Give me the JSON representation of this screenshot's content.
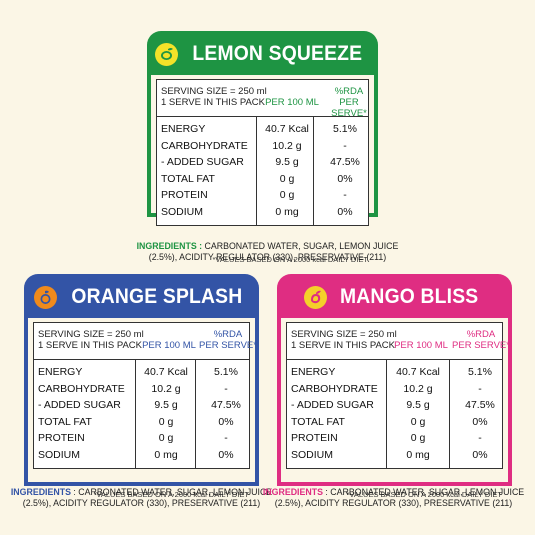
{
  "table": {
    "serving": "SERVING SIZE = 250 ml",
    "pack": "1 SERVE IN THIS PACK",
    "per100": "PER 100 ML",
    "rda_top": "%RDA",
    "rda_bottom": "PER SERVE*",
    "rows": [
      {
        "label": "ENERGY",
        "per100": "40.7 Kcal",
        "rda": "5.1%"
      },
      {
        "label": "CARBOHYDRATE",
        "per100": "10.2 g",
        "rda": "-"
      },
      {
        "label": "- ADDED SUGAR",
        "per100": "9.5 g",
        "rda": "47.5%"
      },
      {
        "label": "TOTAL FAT",
        "per100": "0 g",
        "rda": "0%"
      },
      {
        "label": "PROTEIN",
        "per100": "0 g",
        "rda": "-"
      },
      {
        "label": "SODIUM",
        "per100": "0 mg",
        "rda": "0%"
      }
    ]
  },
  "cards": {
    "lemon": {
      "title": "LEMON SQUEEZE",
      "note": "*VALUES BASED ON A 2000 kcal DAILY DIET",
      "ingredients_label": "INGREDIENTS :",
      "ingredients_line1": " CARBONATED WATER, SUGAR, LEMON JUICE",
      "ingredients_line2": "(2.5%), ACIDITY REGULATOR (330), PRESERVATIVE (211)",
      "color": "#1e9443",
      "accent": "#1e9443"
    },
    "orange": {
      "title": "ORANGE SPLASH",
      "note": "*VALUES BASED ON A 2000 kcal DAILY DIET",
      "ingredients_label": "INGREDIENTS",
      "ingredients_line1": " : CARBONATED WATER, SUGAR, LEMON JUICE",
      "ingredients_line2": "(2.5%), ACIDITY REGULATOR (330), PRESERVATIVE (211)",
      "color": "#3354a6",
      "accent": "#3354a6"
    },
    "mango": {
      "title": "MANGO BLISS",
      "note": "*VALUES BASED ON A 2000 kcal DAILY DIET",
      "ingredients_label": "INGREDIENTS",
      "ingredients_line1": " : CARBONATED WATER, SUGAR, LEMON JUICE",
      "ingredients_line2": "(2.5%), ACIDITY REGULATOR (330), PRESERVATIVE (211)",
      "color": "#df2d82",
      "accent": "#df2d82"
    }
  },
  "icons": {
    "lemon": "lemon-icon",
    "orange": "orange-icon",
    "mango": "mango-icon"
  }
}
